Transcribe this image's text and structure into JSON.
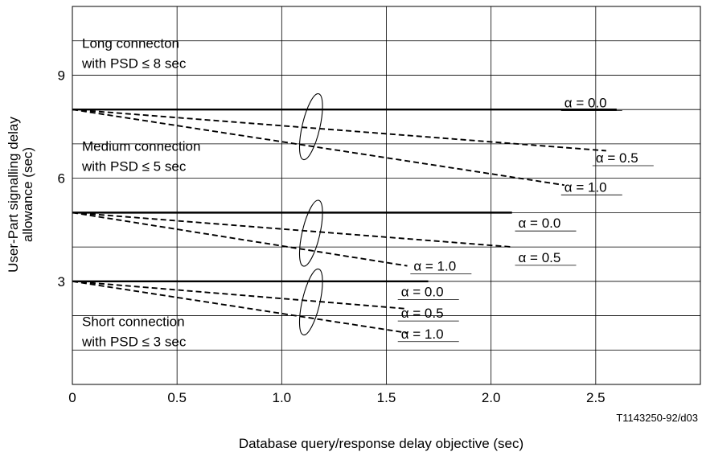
{
  "chart_data": {
    "type": "line",
    "xlabel": "Database query/response delay objective (sec)",
    "ylabel_line1": "User-Part signalling delay",
    "ylabel_line2": "allowance (sec)",
    "xlim": [
      0,
      3.0
    ],
    "ylim": [
      0,
      11
    ],
    "x_ticks": [
      0,
      0.5,
      1.0,
      1.5,
      2.0,
      2.5
    ],
    "x_tick_labels": [
      "0",
      "0.5",
      "1.0",
      "1.5",
      "2.0",
      "2.5"
    ],
    "y_ticks": [
      3,
      6,
      9
    ],
    "y_tick_labels": [
      "3",
      "6",
      "9"
    ],
    "grid": true,
    "figure_code": "T1143250-92/d03",
    "groups": [
      {
        "label_line1": "Long connecton",
        "label_line2": "with PSD ≤ 8 sec",
        "series": [
          {
            "name": "α = 0.0",
            "style": "solid",
            "x": [
              0,
              2.6
            ],
            "y": [
              8.0,
              8.0
            ]
          },
          {
            "name": "α = 0.5",
            "style": "dashed",
            "x": [
              0,
              2.55
            ],
            "y": [
              8.0,
              6.8
            ]
          },
          {
            "name": "α = 1.0",
            "style": "dashed",
            "x": [
              0,
              2.35
            ],
            "y": [
              8.0,
              5.8
            ]
          }
        ]
      },
      {
        "label_line1": "Medium connection",
        "label_line2": "with PSD ≤ 5 sec",
        "series": [
          {
            "name": "α = 0.0",
            "style": "solid",
            "x": [
              0,
              2.1
            ],
            "y": [
              5.0,
              5.0
            ]
          },
          {
            "name": "α = 0.5",
            "style": "dashed",
            "x": [
              0,
              2.1
            ],
            "y": [
              5.0,
              4.0
            ]
          },
          {
            "name": "α = 1.0",
            "style": "dashed",
            "x": [
              0,
              1.6
            ],
            "y": [
              5.0,
              3.45
            ]
          }
        ]
      },
      {
        "label_line1": "Short connection",
        "label_line2": "with PSD ≤ 3 sec",
        "series": [
          {
            "name": "α = 0.0",
            "style": "solid",
            "x": [
              0,
              1.7
            ],
            "y": [
              3.0,
              3.0
            ]
          },
          {
            "name": "α = 0.5",
            "style": "dashed",
            "x": [
              0,
              1.6
            ],
            "y": [
              3.0,
              2.2
            ]
          },
          {
            "name": "α = 1.0",
            "style": "dashed",
            "x": [
              0,
              1.6
            ],
            "y": [
              3.0,
              1.5
            ]
          }
        ]
      }
    ]
  }
}
